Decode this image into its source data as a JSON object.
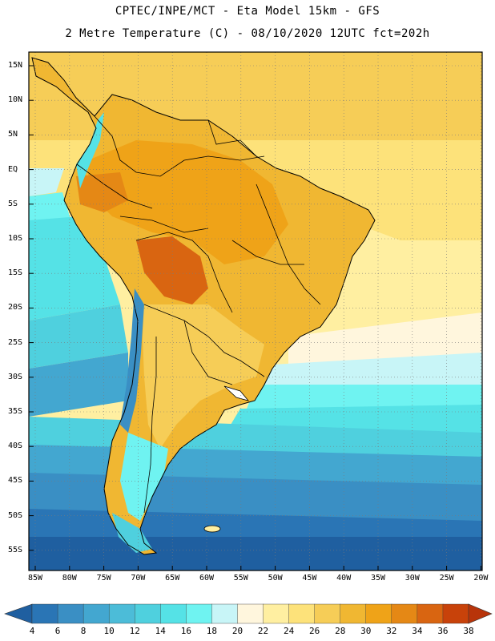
{
  "title": {
    "line1": "CPTEC/INPE/MCT -  Eta Model 15km - GFS",
    "line2": "2 Metre Temperature (C) - 08/10/2020 12UTC fct=202h"
  },
  "axes": {
    "lat_labels": [
      "15N",
      "10N",
      "5N",
      "EQ",
      "5S",
      "10S",
      "15S",
      "20S",
      "25S",
      "30S",
      "35S",
      "40S",
      "45S",
      "50S",
      "55S"
    ],
    "lon_labels": [
      "85W",
      "80W",
      "75W",
      "70W",
      "65W",
      "60W",
      "55W",
      "50W",
      "45W",
      "40W",
      "35W",
      "30W",
      "25W",
      "20W"
    ]
  },
  "colorbar": {
    "levels": [
      4,
      6,
      8,
      10,
      12,
      14,
      16,
      18,
      20,
      22,
      24,
      26,
      28,
      30,
      32,
      34,
      36,
      38
    ],
    "colors": [
      "#1f5fa0",
      "#2a75b5",
      "#3a8fc4",
      "#43a7d0",
      "#4cbcd8",
      "#4fd0de",
      "#55e2e6",
      "#6ff3f1",
      "#c8f5f7",
      "#fff6dd",
      "#ffefa1",
      "#fde27a",
      "#f6cd57",
      "#f0b732",
      "#efa318",
      "#e58815",
      "#d96511",
      "#c8420a",
      "#b8340a"
    ]
  },
  "icons": {
    "colorbar_left_arrow": "triangle-left",
    "colorbar_right_arrow": "triangle-right"
  }
}
